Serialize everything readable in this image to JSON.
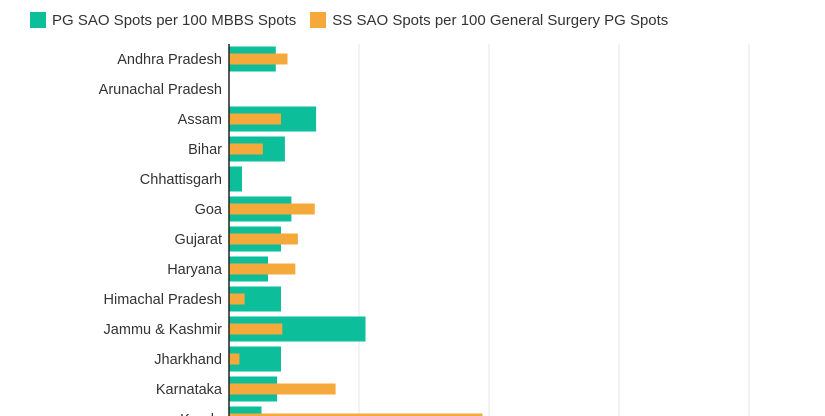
{
  "chart_data": {
    "type": "bar",
    "orientation": "horizontal",
    "title": "",
    "xlabel": "",
    "ylabel": "",
    "grid": true,
    "legend_position": "top-left",
    "categories": [
      "Andhra Pradesh",
      "Arunachal Pradesh",
      "Assam",
      "Bihar",
      "Chhattisgarh",
      "Goa",
      "Gujarat",
      "Haryana",
      "Himachal Pradesh",
      "Jammu & Kashmir",
      "Jharkhand",
      "Karnataka",
      "Kerala"
    ],
    "series": [
      {
        "name": "PG SAO Spots per 100 MBBS Spots",
        "color": "#0cbf9a",
        "values": [
          3.6,
          0,
          6.7,
          4.3,
          1.0,
          4.8,
          4.0,
          3.0,
          4.0,
          10.5,
          4.0,
          3.7,
          2.5
        ]
      },
      {
        "name": "SS SAO Spots per 100 General Surgery PG Spots",
        "color": "#f6a93b",
        "values": [
          4.5,
          0,
          4.0,
          2.6,
          0,
          6.6,
          5.3,
          5.1,
          1.2,
          4.1,
          0.8,
          8.2,
          19.5
        ]
      }
    ],
    "xlim": [
      0,
      40
    ]
  }
}
